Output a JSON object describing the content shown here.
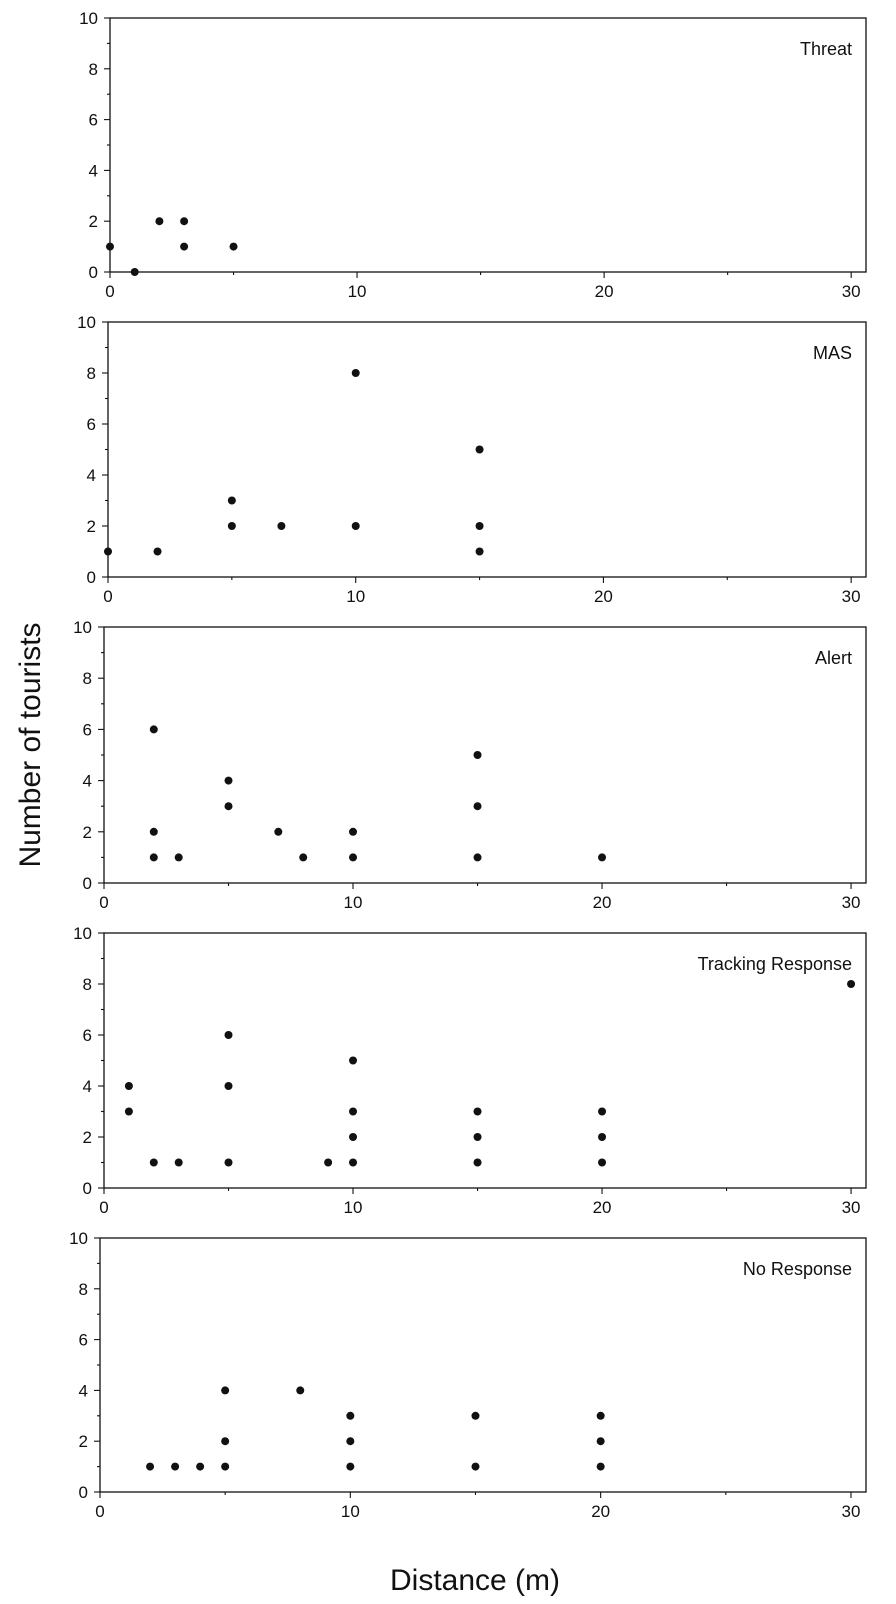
{
  "chart_data": {
    "type": "scatter",
    "ylabel": "Number of tourists",
    "xlabel": "Distance (m)",
    "panels": [
      {
        "label": "Threat",
        "xlim": [
          0,
          30
        ],
        "ylim": [
          0,
          10
        ],
        "x_ticks": [
          "0",
          "10",
          "20",
          "30"
        ],
        "y_ticks": [
          "0",
          "2",
          "4",
          "6",
          "8",
          "10"
        ],
        "points": [
          {
            "x": 0,
            "y": 1
          },
          {
            "x": 1,
            "y": 0
          },
          {
            "x": 2,
            "y": 2
          },
          {
            "x": 3,
            "y": 2
          },
          {
            "x": 3,
            "y": 1
          },
          {
            "x": 5,
            "y": 1
          }
        ]
      },
      {
        "label": "MAS",
        "xlim": [
          0,
          30
        ],
        "ylim": [
          0,
          10
        ],
        "x_ticks": [
          "0",
          "10",
          "20",
          "30"
        ],
        "y_ticks": [
          "0",
          "2",
          "4",
          "6",
          "8",
          "10"
        ],
        "points": [
          {
            "x": 0,
            "y": 1
          },
          {
            "x": 2,
            "y": 1
          },
          {
            "x": 5,
            "y": 3
          },
          {
            "x": 5,
            "y": 2
          },
          {
            "x": 7,
            "y": 2
          },
          {
            "x": 10,
            "y": 8
          },
          {
            "x": 10,
            "y": 2
          },
          {
            "x": 15,
            "y": 5
          },
          {
            "x": 15,
            "y": 2
          },
          {
            "x": 15,
            "y": 1
          }
        ]
      },
      {
        "label": "Alert",
        "xlim": [
          0,
          30
        ],
        "ylim": [
          0,
          10
        ],
        "x_ticks": [
          "0",
          "10",
          "20",
          "30"
        ],
        "y_ticks": [
          "0",
          "2",
          "4",
          "6",
          "8",
          "10"
        ],
        "points": [
          {
            "x": 2,
            "y": 6
          },
          {
            "x": 2,
            "y": 2
          },
          {
            "x": 2,
            "y": 1
          },
          {
            "x": 3,
            "y": 1
          },
          {
            "x": 5,
            "y": 4
          },
          {
            "x": 5,
            "y": 3
          },
          {
            "x": 7,
            "y": 2
          },
          {
            "x": 8,
            "y": 1
          },
          {
            "x": 10,
            "y": 2
          },
          {
            "x": 10,
            "y": 1
          },
          {
            "x": 15,
            "y": 5
          },
          {
            "x": 15,
            "y": 3
          },
          {
            "x": 15,
            "y": 1
          },
          {
            "x": 20,
            "y": 1
          }
        ]
      },
      {
        "label": "Tracking Response",
        "xlim": [
          0,
          30
        ],
        "ylim": [
          0,
          10
        ],
        "x_ticks": [
          "0",
          "10",
          "20",
          "30"
        ],
        "y_ticks": [
          "0",
          "2",
          "4",
          "6",
          "8",
          "10"
        ],
        "points": [
          {
            "x": 1,
            "y": 4
          },
          {
            "x": 1,
            "y": 3
          },
          {
            "x": 2,
            "y": 1
          },
          {
            "x": 3,
            "y": 1
          },
          {
            "x": 5,
            "y": 6
          },
          {
            "x": 5,
            "y": 4
          },
          {
            "x": 5,
            "y": 1
          },
          {
            "x": 9,
            "y": 1
          },
          {
            "x": 10,
            "y": 5
          },
          {
            "x": 10,
            "y": 3
          },
          {
            "x": 10,
            "y": 2
          },
          {
            "x": 10,
            "y": 1
          },
          {
            "x": 15,
            "y": 3
          },
          {
            "x": 15,
            "y": 2
          },
          {
            "x": 15,
            "y": 1
          },
          {
            "x": 20,
            "y": 3
          },
          {
            "x": 20,
            "y": 2
          },
          {
            "x": 20,
            "y": 1
          },
          {
            "x": 30,
            "y": 8
          }
        ]
      },
      {
        "label": "No Response",
        "xlim": [
          0,
          30
        ],
        "ylim": [
          0,
          10
        ],
        "x_ticks": [
          "0",
          "10",
          "20",
          "30"
        ],
        "y_ticks": [
          "0",
          "2",
          "4",
          "6",
          "8",
          "10"
        ],
        "points": [
          {
            "x": 2,
            "y": 1
          },
          {
            "x": 3,
            "y": 1
          },
          {
            "x": 4,
            "y": 1
          },
          {
            "x": 5,
            "y": 4
          },
          {
            "x": 5,
            "y": 2
          },
          {
            "x": 5,
            "y": 1
          },
          {
            "x": 8,
            "y": 4
          },
          {
            "x": 10,
            "y": 3
          },
          {
            "x": 10,
            "y": 2
          },
          {
            "x": 10,
            "y": 1
          },
          {
            "x": 15,
            "y": 3
          },
          {
            "x": 15,
            "y": 1
          },
          {
            "x": 20,
            "y": 3
          },
          {
            "x": 20,
            "y": 2
          },
          {
            "x": 20,
            "y": 1
          }
        ]
      }
    ],
    "grid": false,
    "legend": "none",
    "marker_color": "#111111"
  }
}
